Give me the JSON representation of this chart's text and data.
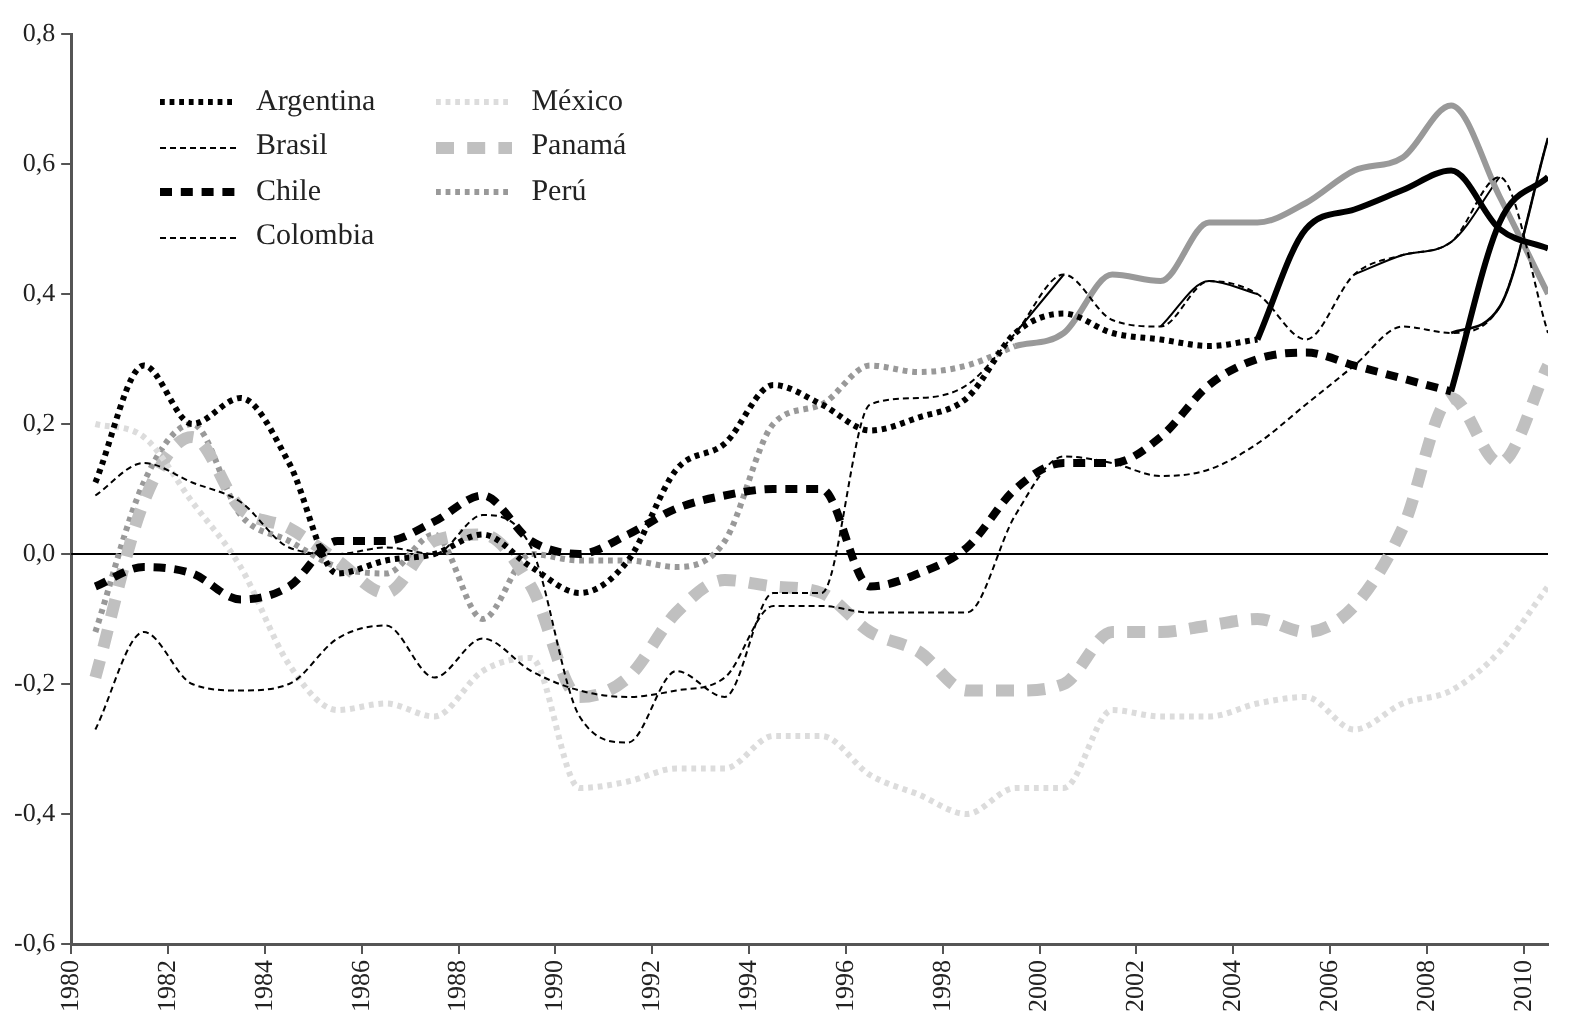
{
  "chart_data": {
    "type": "line",
    "x": [
      1980.5,
      1981.5,
      1982.5,
      1983.5,
      1984.5,
      1985.5,
      1986.5,
      1987.5,
      1988.5,
      1989.5,
      1990.5,
      1991.5,
      1992.5,
      1993.5,
      1994.5,
      1995.5,
      1996.5,
      1997.5,
      1998.5,
      1999.5,
      2000.5,
      2001.5,
      2002.5,
      2003.5,
      2004.5,
      2005.5,
      2006.5,
      2007.5,
      2008.5,
      2009.5,
      2010.5
    ],
    "series": [
      {
        "name": "Argentina",
        "color": "#000000",
        "line_style": "dotted",
        "values": [
          0.11,
          0.29,
          0.2,
          0.24,
          0.14,
          -0.03,
          -0.01,
          0.0,
          0.03,
          -0.02,
          -0.06,
          -0.01,
          0.13,
          0.17,
          0.26,
          0.23,
          0.19,
          0.21,
          0.24,
          0.34,
          0.37,
          0.34,
          0.33,
          0.32,
          0.33,
          null,
          null,
          null,
          null,
          null,
          null
        ]
      },
      {
        "name": "Brasil",
        "color": "#000000",
        "line_style": "dashed",
        "values": [
          0.09,
          0.14,
          0.11,
          0.08,
          0.01,
          0.0,
          0.01,
          0.0,
          0.06,
          0.01,
          -0.25,
          -0.29,
          -0.18,
          -0.22,
          -0.06,
          -0.06,
          0.23,
          0.24,
          0.26,
          0.34,
          0.43,
          0.36,
          0.35,
          0.42,
          0.4,
          0.33,
          0.43,
          0.46,
          0.48,
          0.58,
          0.34
        ]
      },
      {
        "name": "Chile",
        "color": "#000000",
        "line_style": "dashed",
        "values": [
          -0.05,
          -0.02,
          -0.03,
          -0.07,
          -0.05,
          0.02,
          0.02,
          0.05,
          0.09,
          0.02,
          0.0,
          0.03,
          0.07,
          0.09,
          0.1,
          0.1,
          -0.05,
          -0.03,
          0.01,
          0.1,
          0.14,
          0.14,
          0.18,
          0.26,
          0.3,
          0.31,
          0.29,
          0.27,
          0.25,
          null,
          null
        ]
      },
      {
        "name": "Colombia",
        "color": "#000000",
        "line_style": "dashed",
        "values": [
          -0.27,
          -0.12,
          -0.2,
          -0.21,
          -0.2,
          -0.13,
          -0.11,
          -0.19,
          -0.13,
          -0.18,
          -0.21,
          -0.22,
          -0.21,
          -0.19,
          -0.08,
          -0.08,
          -0.09,
          -0.09,
          -0.09,
          0.06,
          0.15,
          0.14,
          0.12,
          0.13,
          0.17,
          0.23,
          0.29,
          0.35,
          0.34,
          0.38,
          0.64
        ]
      },
      {
        "name": "México",
        "color": "#dcdcdc",
        "line_style": "dotted",
        "values": [
          0.2,
          0.18,
          0.08,
          -0.02,
          -0.17,
          -0.24,
          -0.23,
          -0.25,
          -0.18,
          -0.16,
          -0.36,
          -0.35,
          -0.33,
          -0.33,
          -0.28,
          -0.28,
          -0.34,
          -0.37,
          -0.4,
          -0.36,
          -0.36,
          -0.24,
          -0.25,
          -0.25,
          -0.23,
          -0.22,
          -0.27,
          -0.23,
          -0.21,
          -0.15,
          -0.05
        ]
      },
      {
        "name": "Panamá",
        "color": "#c0c0c0",
        "line_style": "dashed",
        "values": [
          -0.19,
          0.08,
          0.18,
          0.07,
          0.04,
          -0.01,
          -0.06,
          0.02,
          0.03,
          -0.05,
          -0.22,
          -0.19,
          -0.09,
          -0.04,
          -0.05,
          -0.06,
          -0.12,
          -0.15,
          -0.21,
          -0.21,
          -0.2,
          -0.12,
          -0.12,
          -0.11,
          -0.1,
          -0.12,
          -0.08,
          0.04,
          0.24,
          0.14,
          0.29
        ]
      },
      {
        "name": "Perú",
        "color": "#999999",
        "line_style": "dotted",
        "values": [
          -0.12,
          0.11,
          0.2,
          0.06,
          0.02,
          -0.02,
          -0.03,
          0.03,
          -0.1,
          0.0,
          -0.01,
          -0.01,
          -0.02,
          0.02,
          0.2,
          0.23,
          0.29,
          0.28,
          0.29,
          0.32,
          null,
          null,
          null,
          null,
          null,
          null,
          null,
          null,
          null,
          null,
          null
        ]
      },
      {
        "color": "#000000",
        "line_style": "solid",
        "values": [
          null,
          null,
          null,
          null,
          null,
          null,
          null,
          null,
          null,
          null,
          null,
          null,
          null,
          null,
          null,
          null,
          null,
          null,
          null,
          null,
          null,
          null,
          null,
          null,
          0.33,
          0.5,
          0.53,
          0.56,
          0.59,
          0.5,
          0.47
        ]
      },
      {
        "color": "#000000",
        "line_style": "solid",
        "values": [
          null,
          null,
          null,
          null,
          null,
          null,
          null,
          null,
          null,
          null,
          null,
          null,
          null,
          null,
          null,
          null,
          null,
          null,
          null,
          null,
          null,
          null,
          null,
          null,
          null,
          null,
          null,
          null,
          0.25,
          0.51,
          0.58
        ]
      },
      {
        "color": "#999999",
        "line_style": "solid",
        "values": [
          null,
          null,
          null,
          null,
          null,
          null,
          null,
          null,
          null,
          null,
          null,
          null,
          null,
          null,
          null,
          null,
          null,
          null,
          null,
          0.32,
          0.34,
          0.43,
          0.42,
          0.51,
          0.51,
          0.54,
          0.59,
          0.61,
          0.69,
          0.55,
          0.4
        ]
      },
      {
        "color": "#000000",
        "line_style": "solid",
        "values": [
          null,
          null,
          null,
          null,
          null,
          null,
          null,
          null,
          null,
          null,
          null,
          null,
          null,
          null,
          null,
          null,
          null,
          null,
          null,
          0.34,
          0.43,
          null,
          0.35,
          0.42,
          0.4,
          null,
          0.43,
          0.46,
          0.48,
          0.58,
          null
        ]
      },
      {
        "color": "#000000",
        "line_style": "solid",
        "values": [
          null,
          null,
          null,
          null,
          null,
          null,
          null,
          null,
          null,
          null,
          null,
          null,
          null,
          null,
          null,
          null,
          null,
          null,
          null,
          null,
          null,
          null,
          null,
          null,
          null,
          null,
          null,
          null,
          0.34,
          0.38,
          0.64
        ]
      }
    ],
    "xlim": [
      1980,
      2010.5
    ],
    "xticks": [
      1980,
      1982,
      1984,
      1986,
      1988,
      1990,
      1992,
      1994,
      1996,
      1998,
      2000,
      2002,
      2004,
      2006,
      2008,
      2010
    ],
    "ylim": [
      -0.6,
      0.8
    ],
    "yticks": [
      {
        "value": -0.6,
        "label": "-0,6"
      },
      {
        "value": -0.4,
        "label": "-0,4"
      },
      {
        "value": -0.2,
        "label": "-0,2"
      },
      {
        "value": 0,
        "label": "0,0"
      },
      {
        "value": 0.2,
        "label": "0,2"
      },
      {
        "value": 0.4,
        "label": "0,4"
      },
      {
        "value": 0.6,
        "label": "0,6"
      },
      {
        "value": 0.8,
        "label": "0,8"
      }
    ],
    "ref_lines": [
      {
        "axis": "y",
        "value": 0,
        "color": "#000000"
      }
    ],
    "grid": false,
    "legend": "top left",
    "marker": "none"
  }
}
